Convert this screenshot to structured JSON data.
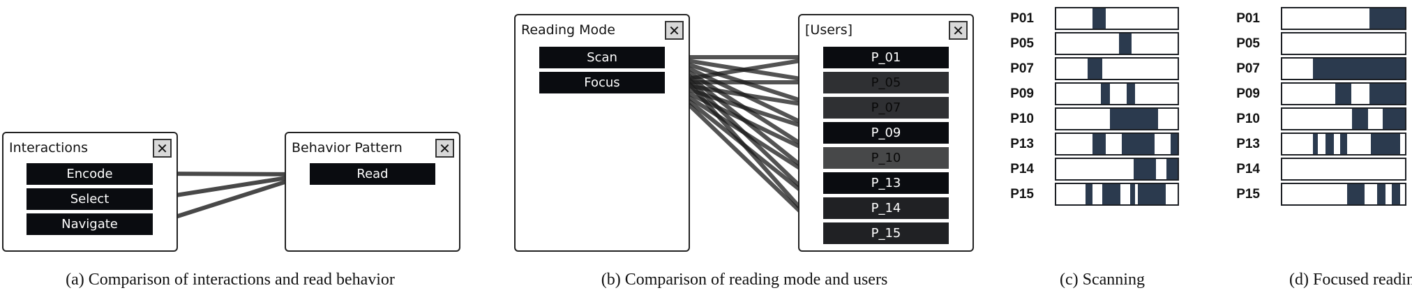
{
  "panel_a": {
    "left": {
      "title": "Interactions",
      "nodes": [
        "Encode",
        "Select",
        "Navigate"
      ]
    },
    "right": {
      "title": "Behavior Pattern",
      "nodes": [
        "Read"
      ]
    },
    "caption": "(a) Comparison of interactions and read behavior"
  },
  "panel_b": {
    "left": {
      "title": "Reading Mode",
      "nodes": [
        "Scan",
        "Focus"
      ]
    },
    "right": {
      "title": "[Users]",
      "nodes": [
        "P_01",
        "P_05",
        "P_07",
        "P_09",
        "P_10",
        "P_13",
        "P_14",
        "P_15"
      ]
    },
    "caption": "(b) Comparison of reading mode and users"
  },
  "close_glyph": "✕",
  "scanning": {
    "caption": "(c) Scanning",
    "rows": [
      {
        "label": "P01",
        "segments": [
          [
            0.3,
            0.41
          ]
        ]
      },
      {
        "label": "P05",
        "segments": [
          [
            0.52,
            0.62
          ]
        ]
      },
      {
        "label": "P07",
        "segments": [
          [
            0.26,
            0.38
          ]
        ]
      },
      {
        "label": "P09",
        "segments": [
          [
            0.37,
            0.44
          ],
          [
            0.58,
            0.65
          ]
        ]
      },
      {
        "label": "P10",
        "segments": [
          [
            0.44,
            0.84
          ]
        ]
      },
      {
        "label": "P13",
        "segments": [
          [
            0.3,
            0.41
          ],
          [
            0.54,
            0.81
          ],
          [
            0.94,
            1.0
          ]
        ]
      },
      {
        "label": "P14",
        "segments": [
          [
            0.64,
            0.82
          ],
          [
            0.91,
            1.0
          ]
        ]
      },
      {
        "label": "P15",
        "segments": [
          [
            0.24,
            0.3
          ],
          [
            0.38,
            0.53
          ],
          [
            0.61,
            0.65
          ],
          [
            0.67,
            0.9
          ]
        ]
      }
    ]
  },
  "focused": {
    "caption": "(d) Focused reading",
    "rows": [
      {
        "label": "P01",
        "segments": [
          [
            0.71,
            1.0
          ]
        ]
      },
      {
        "label": "P05",
        "segments": []
      },
      {
        "label": "P07",
        "segments": [
          [
            0.25,
            1.0
          ]
        ]
      },
      {
        "label": "P09",
        "segments": [
          [
            0.43,
            0.56
          ],
          [
            0.71,
            1.0
          ]
        ]
      },
      {
        "label": "P10",
        "segments": [
          [
            0.57,
            0.7
          ],
          [
            0.82,
            1.0
          ]
        ]
      },
      {
        "label": "P13",
        "segments": [
          [
            0.25,
            0.29
          ],
          [
            0.35,
            0.42
          ],
          [
            0.47,
            0.53
          ],
          [
            0.72,
            0.96
          ]
        ]
      },
      {
        "label": "P14",
        "segments": []
      },
      {
        "label": "P15",
        "segments": [
          [
            0.53,
            0.67
          ],
          [
            0.77,
            0.84
          ],
          [
            0.89,
            0.96
          ]
        ]
      }
    ]
  }
}
